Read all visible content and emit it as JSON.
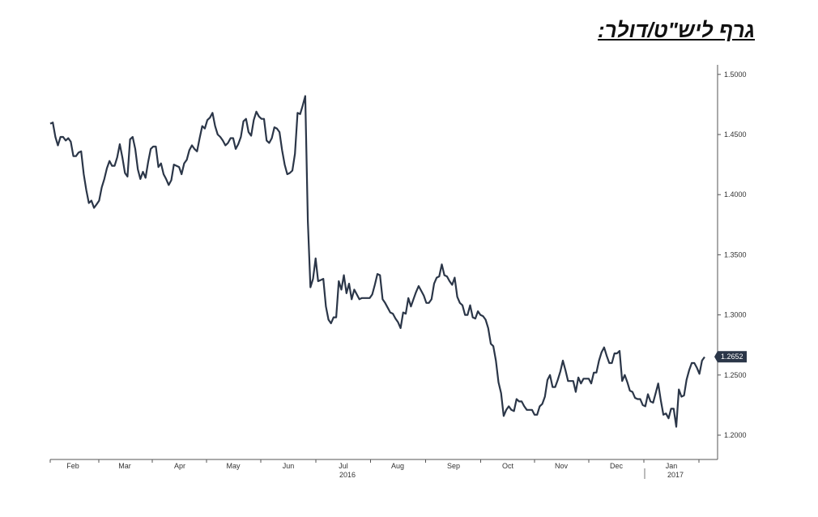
{
  "title": "גרף ליש\"ט/דולר:",
  "chart_data": {
    "type": "line",
    "title": "גרף ליש\"ט/דולר:",
    "xlabel": "",
    "ylabel": "",
    "x_tick_labels": [
      "Feb",
      "Mar",
      "Apr",
      "May",
      "Jun",
      "Jul",
      "Aug",
      "Sep",
      "Oct",
      "Nov",
      "Dec",
      "Jan"
    ],
    "x_year_labels": [
      {
        "under": "Jul",
        "text": "2016"
      },
      {
        "under": "Jan",
        "text": "2017"
      }
    ],
    "y_tick_labels": [
      "1.5000",
      "1.4500",
      "1.4000",
      "1.3500",
      "1.3000",
      "1.2500",
      "1.2000"
    ],
    "ylim": [
      1.18,
      1.51
    ],
    "y_axis_position": "right",
    "grid": false,
    "line_color": "#2b3648",
    "last_value": "1.2652",
    "series": [
      {
        "values": [
          1.459,
          1.46,
          1.448,
          1.441,
          1.448,
          1.448,
          1.445,
          1.447,
          1.444,
          1.432,
          1.432,
          1.435,
          1.436,
          1.417,
          1.404,
          1.393,
          1.395,
          1.389,
          1.392,
          1.395,
          1.406,
          1.413,
          1.422,
          1.428,
          1.424,
          1.424,
          1.431,
          1.442,
          1.431,
          1.418,
          1.415,
          1.446,
          1.448,
          1.438,
          1.421,
          1.413,
          1.419,
          1.414,
          1.427,
          1.438,
          1.44,
          1.44,
          1.423,
          1.426,
          1.417,
          1.413,
          1.408,
          1.412,
          1.425,
          1.424,
          1.423,
          1.417,
          1.426,
          1.429,
          1.437,
          1.441,
          1.438,
          1.436,
          1.447,
          1.457,
          1.455,
          1.462,
          1.464,
          1.468,
          1.457,
          1.45,
          1.448,
          1.445,
          1.441,
          1.443,
          1.447,
          1.447,
          1.438,
          1.442,
          1.448,
          1.461,
          1.463,
          1.452,
          1.449,
          1.462,
          1.469,
          1.465,
          1.463,
          1.463,
          1.445,
          1.443,
          1.447,
          1.456,
          1.455,
          1.452,
          1.437,
          1.425,
          1.417,
          1.418,
          1.42,
          1.434,
          1.468,
          1.467,
          1.474,
          1.482,
          1.378,
          1.323,
          1.33,
          1.347,
          1.328,
          1.329,
          1.33,
          1.307,
          1.296,
          1.293,
          1.298,
          1.298,
          1.328,
          1.321,
          1.333,
          1.318,
          1.326,
          1.313,
          1.321,
          1.317,
          1.313,
          1.314,
          1.314,
          1.314,
          1.314,
          1.317,
          1.325,
          1.334,
          1.333,
          1.313,
          1.31,
          1.306,
          1.302,
          1.301,
          1.297,
          1.294,
          1.289,
          1.302,
          1.301,
          1.314,
          1.307,
          1.313,
          1.319,
          1.324,
          1.32,
          1.316,
          1.31,
          1.31,
          1.313,
          1.326,
          1.331,
          1.332,
          1.342,
          1.333,
          1.332,
          1.328,
          1.325,
          1.331,
          1.315,
          1.31,
          1.308,
          1.3,
          1.3,
          1.308,
          1.298,
          1.297,
          1.303,
          1.3,
          1.299,
          1.296,
          1.289,
          1.276,
          1.274,
          1.262,
          1.244,
          1.235,
          1.216,
          1.221,
          1.224,
          1.221,
          1.22,
          1.23,
          1.228,
          1.228,
          1.224,
          1.221,
          1.221,
          1.221,
          1.217,
          1.217,
          1.224,
          1.226,
          1.232,
          1.246,
          1.25,
          1.24,
          1.24,
          1.246,
          1.253,
          1.262,
          1.254,
          1.245,
          1.245,
          1.245,
          1.236,
          1.248,
          1.243,
          1.247,
          1.247,
          1.247,
          1.243,
          1.252,
          1.252,
          1.262,
          1.269,
          1.273,
          1.266,
          1.26,
          1.26,
          1.268,
          1.268,
          1.27,
          1.245,
          1.25,
          1.244,
          1.237,
          1.236,
          1.231,
          1.23,
          1.23,
          1.225,
          1.224,
          1.234,
          1.228,
          1.227,
          1.235,
          1.243,
          1.229,
          1.217,
          1.218,
          1.214,
          1.222,
          1.222,
          1.207,
          1.238,
          1.232,
          1.233,
          1.246,
          1.254,
          1.26,
          1.26,
          1.256,
          1.251,
          1.262,
          1.265
        ]
      }
    ]
  }
}
